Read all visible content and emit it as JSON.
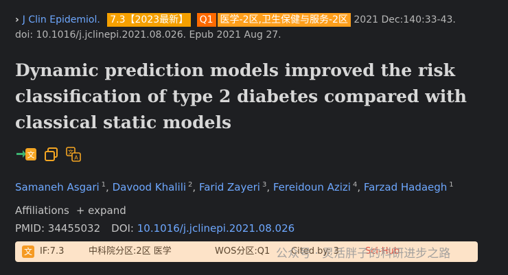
{
  "citation": {
    "journal": "J Clin Epidemiol.",
    "if_badge": "7.3【2023最新】",
    "quartile_badge": "Q1",
    "cas_badge": "医学-2区,卫生保健与服务-2区",
    "date_pages": "2021 Dec:140:33-43.",
    "doi_epub": "doi: 10.1016/j.jclinepi.2021.08.026. Epub 2021 Aug 27."
  },
  "title": "Dynamic prediction models improved the risk classification of type 2 diabetes compared with classical static models",
  "authors": [
    {
      "name": "Samaneh Asgari",
      "aff": "1"
    },
    {
      "name": "Davood Khalili",
      "aff": "2"
    },
    {
      "name": "Farid Zayeri",
      "aff": "3"
    },
    {
      "name": "Fereidoun Azizi",
      "aff": "4"
    },
    {
      "name": "Farzad Hadaegh",
      "aff": "1"
    }
  ],
  "affiliations": {
    "label": "Affiliations",
    "expand": "+ expand"
  },
  "ids": {
    "pmid_label": "PMID: 34455032",
    "doi_label": "DOI:",
    "doi_value": "10.1016/j.jclinepi.2021.08.026"
  },
  "infobar": {
    "icon_text": "文",
    "impact_factor": "IF:7.3",
    "cas_zone": "中科院分区:2区 医学",
    "wos_zone": "WOS分区:Q1",
    "cited_by": "Cited by: 3",
    "sci_hub": "Sci-Hub"
  },
  "watermark": "公众号 · 灵活胖子的科研进步之路",
  "colors": {
    "link": "#6ea8ff",
    "background": "#1e1f22",
    "infobar": "#fde3c8"
  }
}
